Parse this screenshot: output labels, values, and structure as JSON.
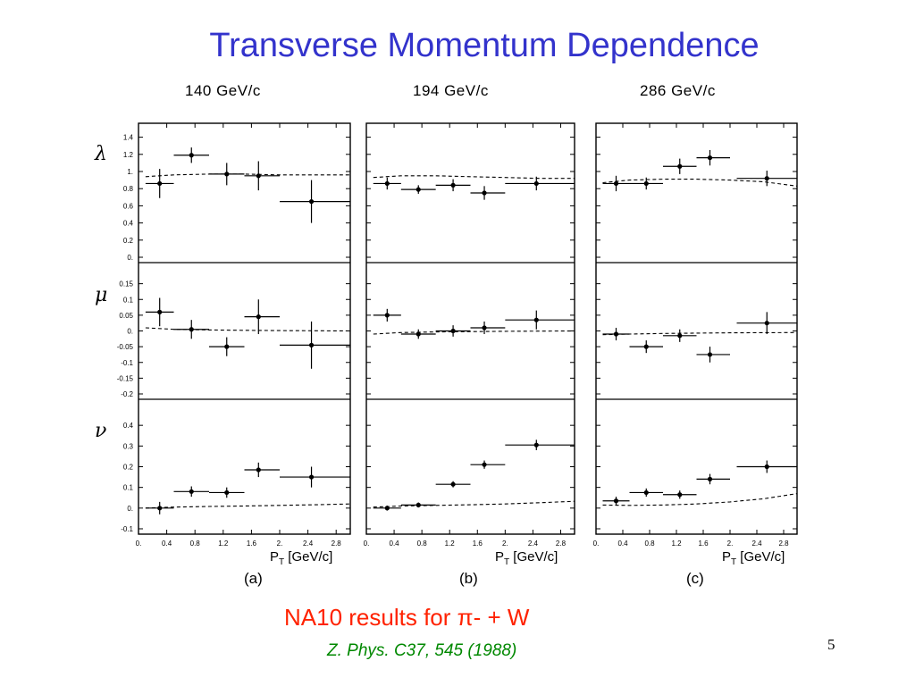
{
  "slide": {
    "title": "Transverse Momentum Dependence",
    "subtitle": "NA10 results for π- + W",
    "reference": "Z. Phys. C37, 545 (1988)",
    "page_number": "5",
    "colors": {
      "title": "#3333cc",
      "subtitle": "#ff2200",
      "reference": "#008800"
    }
  },
  "chart_data": {
    "type": "scatter",
    "energies": [
      "140  GeV/c",
      "194  GeV/c",
      "286  GeV/c"
    ],
    "panel_labels": [
      "(a)",
      "(b)",
      "(c)"
    ],
    "x_axis": {
      "label": "P",
      "label_sub": "T",
      "label_unit": " [GeV/c]",
      "range": [
        0,
        3.0
      ],
      "ticks": [
        {
          "v": 0,
          "t": "0."
        },
        {
          "v": 0.4,
          "t": "0.4"
        },
        {
          "v": 0.8,
          "t": "0.8"
        },
        {
          "v": 1.2,
          "t": "1.2"
        },
        {
          "v": 1.6,
          "t": "1.6"
        },
        {
          "v": 2.0,
          "t": "2."
        },
        {
          "v": 2.4,
          "t": "2.4"
        },
        {
          "v": 2.8,
          "t": "2.8"
        }
      ]
    },
    "rows": [
      {
        "quantity": "λ",
        "ylim": [
          0,
          1.5
        ],
        "yticks": [
          {
            "v": 1.4,
            "t": "1.4"
          },
          {
            "v": 1.2,
            "t": "1.2"
          },
          {
            "v": 1.0,
            "t": "1."
          },
          {
            "v": 0.8,
            "t": "0.8"
          },
          {
            "v": 0.6,
            "t": "0.6"
          },
          {
            "v": 0.4,
            "t": "0.4"
          },
          {
            "v": 0.2,
            "t": "0.2"
          },
          {
            "v": 0,
            "t": "0."
          }
        ],
        "panels": [
          {
            "points": [
              {
                "x": 0.3,
                "y": 0.86,
                "xlo": 0.1,
                "xhi": 0.5,
                "yerr": 0.17
              },
              {
                "x": 0.75,
                "y": 1.19,
                "xlo": 0.5,
                "xhi": 1.0,
                "yerr": 0.09
              },
              {
                "x": 1.25,
                "y": 0.97,
                "xlo": 1.0,
                "xhi": 1.5,
                "yerr": 0.13
              },
              {
                "x": 1.7,
                "y": 0.95,
                "xlo": 1.5,
                "xhi": 2.0,
                "yerr": 0.17
              },
              {
                "x": 2.45,
                "y": 0.65,
                "xlo": 2.0,
                "xhi": 3.0,
                "yerr": 0.25
              }
            ],
            "theory": [
              [
                0.1,
                0.94
              ],
              [
                0.5,
                0.96
              ],
              [
                1.0,
                0.97
              ],
              [
                1.5,
                0.97
              ],
              [
                2.0,
                0.96
              ],
              [
                2.5,
                0.96
              ],
              [
                3.0,
                0.96
              ]
            ]
          },
          {
            "points": [
              {
                "x": 0.3,
                "y": 0.86,
                "xlo": 0.1,
                "xhi": 0.5,
                "yerr": 0.07
              },
              {
                "x": 0.75,
                "y": 0.79,
                "xlo": 0.5,
                "xhi": 1.0,
                "yerr": 0.05
              },
              {
                "x": 1.25,
                "y": 0.84,
                "xlo": 1.0,
                "xhi": 1.5,
                "yerr": 0.07
              },
              {
                "x": 1.7,
                "y": 0.75,
                "xlo": 1.5,
                "xhi": 2.0,
                "yerr": 0.08
              },
              {
                "x": 2.45,
                "y": 0.86,
                "xlo": 2.0,
                "xhi": 3.0,
                "yerr": 0.08
              }
            ],
            "theory": [
              [
                0.1,
                0.93
              ],
              [
                0.5,
                0.95
              ],
              [
                1.0,
                0.95
              ],
              [
                1.5,
                0.94
              ],
              [
                2.0,
                0.93
              ],
              [
                2.5,
                0.92
              ],
              [
                3.0,
                0.92
              ]
            ]
          },
          {
            "points": [
              {
                "x": 0.3,
                "y": 0.86,
                "xlo": 0.1,
                "xhi": 0.5,
                "yerr": 0.09
              },
              {
                "x": 0.75,
                "y": 0.86,
                "xlo": 0.5,
                "xhi": 1.0,
                "yerr": 0.07
              },
              {
                "x": 1.25,
                "y": 1.06,
                "xlo": 1.0,
                "xhi": 1.5,
                "yerr": 0.09
              },
              {
                "x": 1.7,
                "y": 1.16,
                "xlo": 1.5,
                "xhi": 2.0,
                "yerr": 0.09
              },
              {
                "x": 2.55,
                "y": 0.92,
                "xlo": 2.1,
                "xhi": 3.0,
                "yerr": 0.09
              }
            ],
            "theory": [
              [
                0.1,
                0.87
              ],
              [
                0.5,
                0.9
              ],
              [
                1.0,
                0.91
              ],
              [
                1.5,
                0.91
              ],
              [
                2.0,
                0.9
              ],
              [
                2.5,
                0.88
              ],
              [
                3.0,
                0.83
              ]
            ]
          }
        ]
      },
      {
        "quantity": "μ",
        "ylim": [
          -0.2,
          0.2
        ],
        "yticks": [
          {
            "v": 0.15,
            "t": "0.15"
          },
          {
            "v": 0.1,
            "t": "0.1"
          },
          {
            "v": 0.05,
            "t": "0.05"
          },
          {
            "v": 0,
            "t": "0."
          },
          {
            "v": -0.05,
            "t": "-0.05"
          },
          {
            "v": -0.1,
            "t": "-0.1"
          },
          {
            "v": -0.15,
            "t": "-0.15"
          },
          {
            "v": -0.2,
            "t": "-0.2"
          }
        ],
        "panels": [
          {
            "points": [
              {
                "x": 0.3,
                "y": 0.06,
                "xlo": 0.1,
                "xhi": 0.5,
                "yerr": 0.045
              },
              {
                "x": 0.75,
                "y": 0.005,
                "xlo": 0.5,
                "xhi": 1.0,
                "yerr": 0.03
              },
              {
                "x": 1.25,
                "y": -0.05,
                "xlo": 1.0,
                "xhi": 1.5,
                "yerr": 0.03
              },
              {
                "x": 1.7,
                "y": 0.045,
                "xlo": 1.5,
                "xhi": 2.0,
                "yerr": 0.055
              },
              {
                "x": 2.45,
                "y": -0.045,
                "xlo": 2.0,
                "xhi": 3.0,
                "yerr": 0.075
              }
            ],
            "theory": [
              [
                0.1,
                0.01
              ],
              [
                0.5,
                0.005
              ],
              [
                1.0,
                0.003
              ],
              [
                1.5,
                0.002
              ],
              [
                2.0,
                0.001
              ],
              [
                3.0,
                0.0
              ]
            ]
          },
          {
            "points": [
              {
                "x": 0.3,
                "y": 0.05,
                "xlo": 0.1,
                "xhi": 0.5,
                "yerr": 0.02
              },
              {
                "x": 0.75,
                "y": -0.01,
                "xlo": 0.5,
                "xhi": 1.0,
                "yerr": 0.015
              },
              {
                "x": 1.25,
                "y": 0.0,
                "xlo": 1.0,
                "xhi": 1.5,
                "yerr": 0.018
              },
              {
                "x": 1.7,
                "y": 0.01,
                "xlo": 1.5,
                "xhi": 2.0,
                "yerr": 0.02
              },
              {
                "x": 2.45,
                "y": 0.035,
                "xlo": 2.0,
                "xhi": 3.0,
                "yerr": 0.03
              }
            ],
            "theory": [
              [
                0.1,
                -0.01
              ],
              [
                0.5,
                -0.005
              ],
              [
                1.0,
                -0.003
              ],
              [
                2.0,
                -0.001
              ],
              [
                3.0,
                0.0
              ]
            ]
          },
          {
            "points": [
              {
                "x": 0.3,
                "y": -0.01,
                "xlo": 0.1,
                "xhi": 0.5,
                "yerr": 0.02
              },
              {
                "x": 0.75,
                "y": -0.05,
                "xlo": 0.5,
                "xhi": 1.0,
                "yerr": 0.02
              },
              {
                "x": 1.25,
                "y": -0.015,
                "xlo": 1.0,
                "xhi": 1.5,
                "yerr": 0.02
              },
              {
                "x": 1.7,
                "y": -0.075,
                "xlo": 1.5,
                "xhi": 2.0,
                "yerr": 0.025
              },
              {
                "x": 2.55,
                "y": 0.025,
                "xlo": 2.1,
                "xhi": 3.0,
                "yerr": 0.035
              }
            ],
            "theory": [
              [
                0.1,
                -0.012
              ],
              [
                0.5,
                -0.01
              ],
              [
                1.0,
                -0.008
              ],
              [
                2.0,
                -0.006
              ],
              [
                3.0,
                -0.005
              ]
            ]
          }
        ]
      },
      {
        "quantity": "ν",
        "ylim": [
          -0.1,
          0.5
        ],
        "yticks": [
          {
            "v": 0.4,
            "t": "0.4"
          },
          {
            "v": 0.3,
            "t": "0.3"
          },
          {
            "v": 0.2,
            "t": "0.2"
          },
          {
            "v": 0.1,
            "t": "0.1"
          },
          {
            "v": 0,
            "t": "0."
          },
          {
            "v": -0.1,
            "t": "-0.1"
          }
        ],
        "panels": [
          {
            "points": [
              {
                "x": 0.3,
                "y": 0.0,
                "xlo": 0.1,
                "xhi": 0.5,
                "yerr": 0.03
              },
              {
                "x": 0.75,
                "y": 0.08,
                "xlo": 0.5,
                "xhi": 1.0,
                "yerr": 0.025
              },
              {
                "x": 1.25,
                "y": 0.075,
                "xlo": 1.0,
                "xhi": 1.5,
                "yerr": 0.025
              },
              {
                "x": 1.7,
                "y": 0.185,
                "xlo": 1.5,
                "xhi": 2.0,
                "yerr": 0.035
              },
              {
                "x": 2.45,
                "y": 0.15,
                "xlo": 2.0,
                "xhi": 3.0,
                "yerr": 0.05
              }
            ],
            "theory": [
              [
                0.1,
                0.0
              ],
              [
                0.5,
                0.005
              ],
              [
                1.0,
                0.008
              ],
              [
                1.5,
                0.01
              ],
              [
                2.0,
                0.013
              ],
              [
                2.5,
                0.016
              ],
              [
                3.0,
                0.02
              ]
            ]
          },
          {
            "points": [
              {
                "x": 0.3,
                "y": 0.0,
                "xlo": 0.1,
                "xhi": 0.5,
                "yerr": 0.012
              },
              {
                "x": 0.75,
                "y": 0.015,
                "xlo": 0.5,
                "xhi": 1.0,
                "yerr": 0.012
              },
              {
                "x": 1.25,
                "y": 0.115,
                "xlo": 1.0,
                "xhi": 1.5,
                "yerr": 0.015
              },
              {
                "x": 1.7,
                "y": 0.21,
                "xlo": 1.5,
                "xhi": 2.0,
                "yerr": 0.02
              },
              {
                "x": 2.45,
                "y": 0.305,
                "xlo": 2.0,
                "xhi": 3.0,
                "yerr": 0.025
              }
            ],
            "theory": [
              [
                0.1,
                0.005
              ],
              [
                0.5,
                0.01
              ],
              [
                1.0,
                0.013
              ],
              [
                1.5,
                0.016
              ],
              [
                2.0,
                0.02
              ],
              [
                2.5,
                0.026
              ],
              [
                3.0,
                0.033
              ]
            ]
          },
          {
            "points": [
              {
                "x": 0.3,
                "y": 0.035,
                "xlo": 0.1,
                "xhi": 0.5,
                "yerr": 0.02
              },
              {
                "x": 0.75,
                "y": 0.075,
                "xlo": 0.5,
                "xhi": 1.0,
                "yerr": 0.02
              },
              {
                "x": 1.25,
                "y": 0.065,
                "xlo": 1.0,
                "xhi": 1.5,
                "yerr": 0.02
              },
              {
                "x": 1.7,
                "y": 0.14,
                "xlo": 1.5,
                "xhi": 2.0,
                "yerr": 0.025
              },
              {
                "x": 2.55,
                "y": 0.2,
                "xlo": 2.1,
                "xhi": 3.0,
                "yerr": 0.03
              }
            ],
            "theory": [
              [
                0.1,
                0.015
              ],
              [
                0.5,
                0.013
              ],
              [
                1.0,
                0.015
              ],
              [
                1.5,
                0.02
              ],
              [
                2.0,
                0.03
              ],
              [
                2.5,
                0.045
              ],
              [
                3.0,
                0.07
              ]
            ]
          }
        ]
      }
    ]
  }
}
